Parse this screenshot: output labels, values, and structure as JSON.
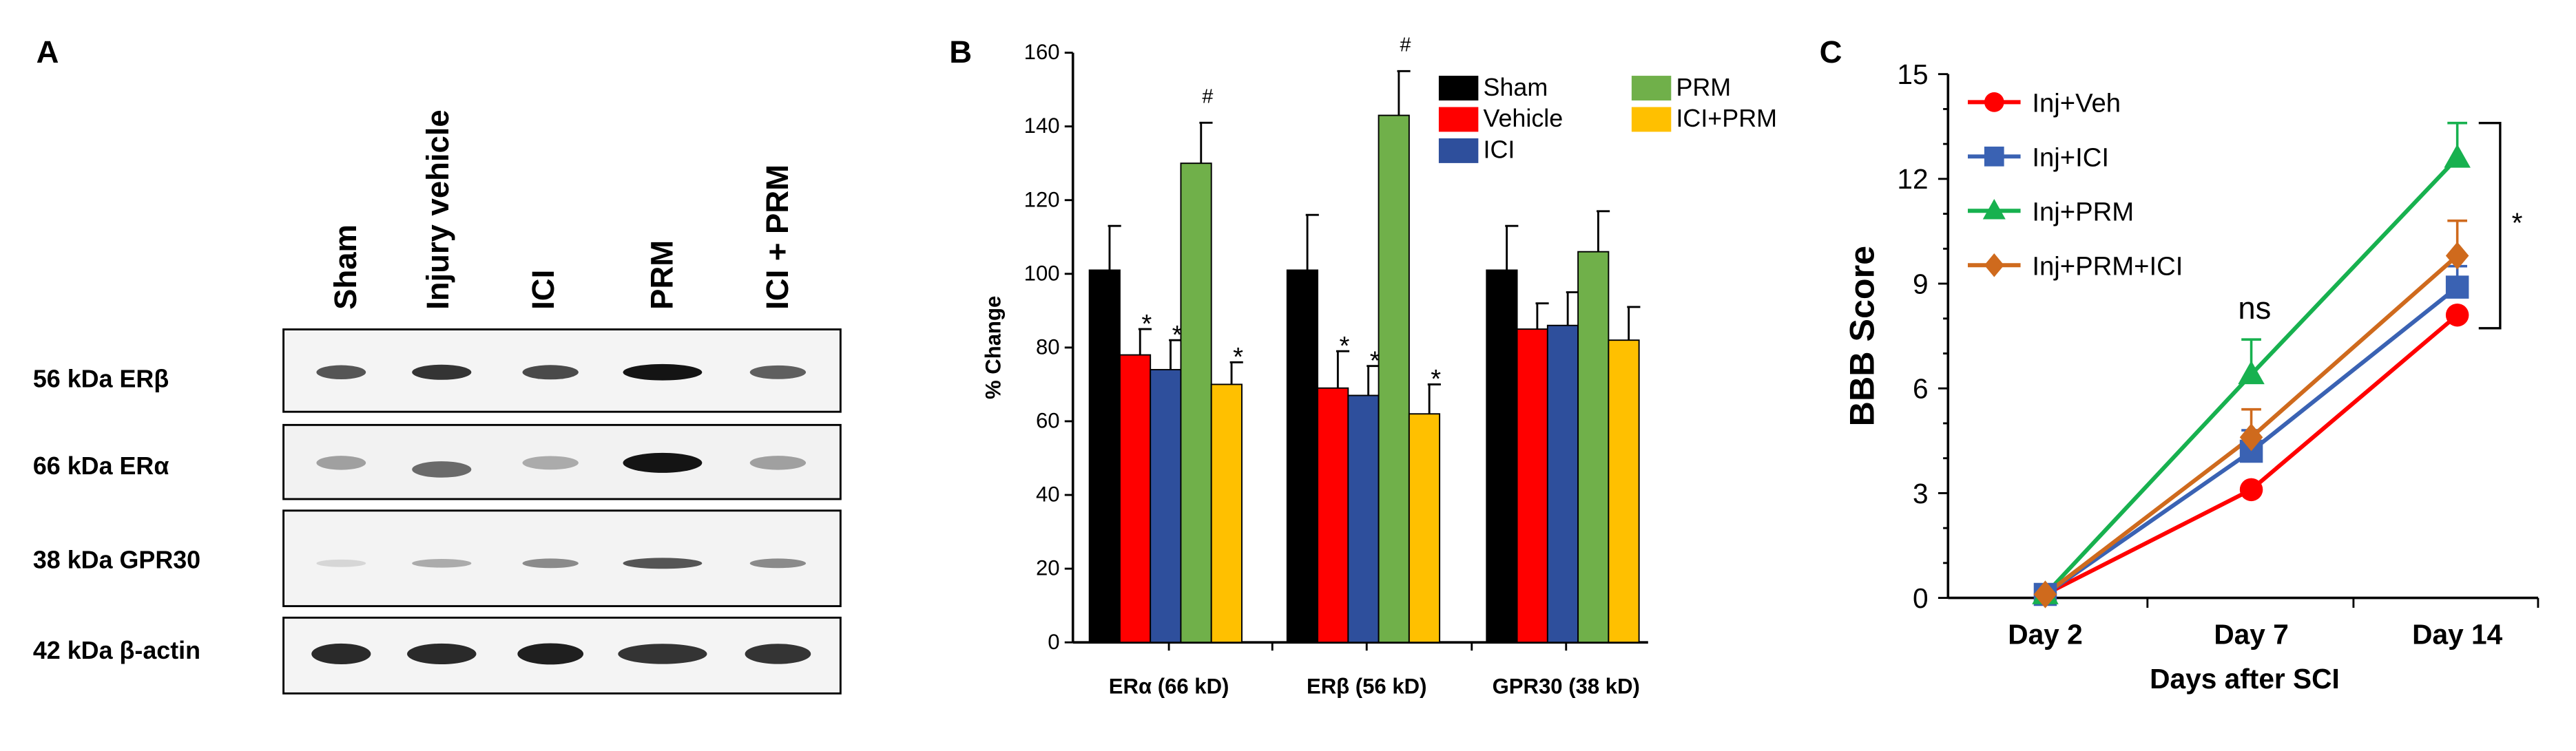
{
  "panel_a": {
    "letter": "A",
    "lanes": [
      "Sham",
      "Injury vehicle",
      "ICI",
      "PRM",
      "ICI + PRM"
    ],
    "rows": [
      {
        "label": "56 kDa ERβ",
        "intensity": [
          0.7,
          0.85,
          0.75,
          1.0,
          0.65
        ]
      },
      {
        "label": "66 kDa ERα",
        "intensity": [
          0.35,
          0.6,
          0.3,
          1.0,
          0.35
        ]
      },
      {
        "label": "38 kDa GPR30",
        "intensity": [
          0.1,
          0.3,
          0.45,
          0.7,
          0.45
        ]
      },
      {
        "label": "42 kDa β-actin",
        "intensity": [
          0.9,
          0.9,
          0.95,
          0.85,
          0.85
        ]
      }
    ]
  },
  "panel_b": {
    "letter": "B"
  },
  "panel_c": {
    "letter": "C"
  },
  "chart_data": [
    {
      "type": "bar",
      "id": "B",
      "title": "",
      "ylabel": "% Change",
      "xlabel": "",
      "ylim": [
        0,
        160
      ],
      "yticks": [
        0,
        20,
        40,
        60,
        80,
        100,
        120,
        140,
        160
      ],
      "categories": [
        "ERα (66 kD)",
        "ERβ (56 kD)",
        "GPR30 (38 kD)"
      ],
      "legend_position": "top-right",
      "series": [
        {
          "name": "Sham",
          "color": "#000000",
          "values": [
            101,
            101,
            101
          ],
          "errors": [
            12,
            15,
            12
          ],
          "marks": [
            "",
            "",
            ""
          ]
        },
        {
          "name": "Vehicle",
          "color": "#ff0000",
          "values": [
            78,
            69,
            85
          ],
          "errors": [
            7,
            10,
            7
          ],
          "marks": [
            "*",
            "*",
            ""
          ]
        },
        {
          "name": "ICI",
          "color": "#2e4f9c",
          "values": [
            74,
            67,
            86
          ],
          "errors": [
            8,
            8,
            9
          ],
          "marks": [
            "*",
            "*",
            ""
          ]
        },
        {
          "name": "PRM",
          "color": "#70b04a",
          "values": [
            130,
            143,
            106
          ],
          "errors": [
            11,
            12,
            11
          ],
          "marks": [
            "#",
            "#",
            ""
          ]
        },
        {
          "name": "ICI+PRM",
          "color": "#ffc000",
          "values": [
            70,
            62,
            82
          ],
          "errors": [
            6,
            8,
            9
          ],
          "marks": [
            "*",
            "*",
            ""
          ]
        }
      ]
    },
    {
      "type": "line",
      "id": "C",
      "title": "",
      "ylabel": "BBB Score",
      "xlabel": "Days after SCI",
      "categories": [
        "Day 2",
        "Day 7",
        "Day 14"
      ],
      "ylim": [
        0,
        15
      ],
      "yticks": [
        0,
        3,
        6,
        9,
        12,
        15
      ],
      "legend_position": "top-left",
      "series": [
        {
          "name": "Inj+Veh",
          "color": "#ff0000",
          "marker": "circle",
          "values": [
            0.1,
            3.1,
            8.1
          ],
          "errors": [
            0,
            0,
            0
          ]
        },
        {
          "name": "Inj+ICI",
          "color": "#3a62b3",
          "marker": "square",
          "values": [
            0.1,
            4.2,
            8.9
          ],
          "errors": [
            0,
            0.6,
            0.6
          ]
        },
        {
          "name": "Inj+PRM",
          "color": "#17b14f",
          "marker": "triangle",
          "values": [
            0.1,
            6.4,
            12.6
          ],
          "errors": [
            0,
            1.0,
            1.0
          ]
        },
        {
          "name": "Inj+PRM+ICI",
          "color": "#cf6a1d",
          "marker": "diamond",
          "values": [
            0.1,
            4.6,
            9.8
          ],
          "errors": [
            0,
            0.8,
            1.0
          ]
        }
      ],
      "annotations": [
        {
          "text": "ns",
          "x": "Day 7",
          "y": 8.0
        },
        {
          "text": "*",
          "bracket": [
            "Inj+Veh",
            "Inj+PRM"
          ],
          "x": "Day 14"
        }
      ]
    }
  ]
}
